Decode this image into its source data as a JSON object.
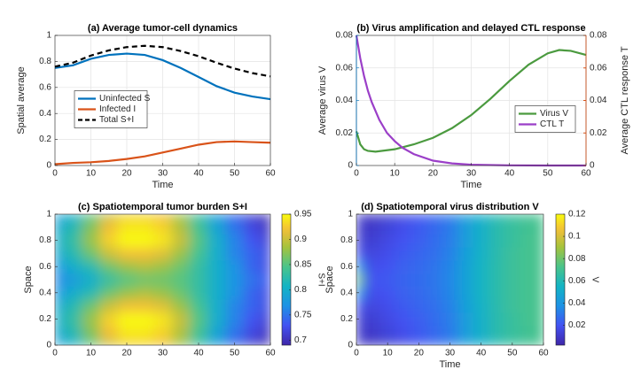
{
  "chart_data": [
    {
      "type": "line",
      "title": "(a) Average tumor-cell dynamics",
      "xlabel": "Time",
      "ylabel": "Spatial average",
      "x": [
        0,
        5,
        10,
        15,
        20,
        25,
        30,
        35,
        40,
        45,
        50,
        55,
        60
      ],
      "series": [
        {
          "name": "Uninfected S",
          "color": "#0072bd",
          "values": [
            0.75,
            0.77,
            0.82,
            0.85,
            0.86,
            0.85,
            0.81,
            0.75,
            0.68,
            0.61,
            0.56,
            0.53,
            0.51
          ]
        },
        {
          "name": "Infected I",
          "color": "#d95319",
          "values": [
            0.01,
            0.02,
            0.025,
            0.035,
            0.05,
            0.07,
            0.1,
            0.13,
            0.16,
            0.18,
            0.185,
            0.18,
            0.175
          ]
        },
        {
          "name": "Total S+I",
          "color": "#000000",
          "style": "dashed",
          "values": [
            0.76,
            0.79,
            0.845,
            0.885,
            0.91,
            0.92,
            0.91,
            0.88,
            0.84,
            0.79,
            0.745,
            0.71,
            0.685
          ]
        }
      ],
      "xlim": [
        0,
        60
      ],
      "xticks": [
        0,
        10,
        20,
        30,
        40,
        50,
        60
      ],
      "ylim": [
        0,
        1
      ],
      "yticks": [
        0,
        0.2,
        0.4,
        0.6,
        0.8,
        1
      ],
      "grid": true,
      "legend": "west"
    },
    {
      "type": "line",
      "title": "(b) Virus amplification and delayed CTL response",
      "xlabel": "Time",
      "ylabel": "Average virus V",
      "y2label": "Average CTL response T",
      "y_color": "#0072bd",
      "y2_color": "#d95319",
      "series": [
        {
          "name": "Virus V",
          "color": "#4b9a3f",
          "x": [
            0,
            1,
            2,
            3,
            5,
            10,
            15,
            20,
            25,
            30,
            35,
            40,
            45,
            50,
            53,
            56,
            60
          ],
          "values": [
            0.021,
            0.013,
            0.01,
            0.009,
            0.0085,
            0.01,
            0.013,
            0.017,
            0.023,
            0.031,
            0.041,
            0.052,
            0.062,
            0.069,
            0.071,
            0.0705,
            0.068
          ]
        },
        {
          "name": "CTL T",
          "color": "#9b3fc8",
          "axis": "y2",
          "x": [
            0,
            1,
            2,
            3,
            4,
            6,
            8,
            10,
            12,
            15,
            20,
            25,
            30,
            40,
            50,
            60
          ],
          "values": [
            0.08,
            0.066,
            0.055,
            0.046,
            0.039,
            0.028,
            0.02,
            0.015,
            0.011,
            0.007,
            0.003,
            0.0013,
            0.0005,
            0.0001,
            0,
            0
          ]
        }
      ],
      "xlim": [
        0,
        60
      ],
      "xticks": [
        0,
        10,
        20,
        30,
        40,
        50,
        60
      ],
      "ylim": [
        0,
        0.08
      ],
      "yticks": [
        0,
        0.02,
        0.04,
        0.06,
        0.08
      ],
      "y2lim": [
        0,
        0.08
      ],
      "y2ticks": [
        0,
        0.02,
        0.04,
        0.06,
        0.08
      ],
      "grid": true,
      "legend": "east"
    },
    {
      "type": "heatmap",
      "title": "(c) Spatiotemporal tumor burden S+I",
      "ylabel": "Space",
      "colorbar_label": "S+I",
      "x": [
        0,
        5,
        10,
        15,
        20,
        25,
        30,
        35,
        40,
        45,
        50,
        55,
        60
      ],
      "y": [
        0,
        0.1,
        0.2,
        0.3,
        0.4,
        0.5,
        0.6,
        0.7,
        0.8,
        0.9,
        1
      ],
      "z": [
        [
          0.78,
          0.8,
          0.85,
          0.9,
          0.93,
          0.93,
          0.92,
          0.88,
          0.83,
          0.78,
          0.74,
          0.71,
          0.69
        ],
        [
          0.79,
          0.82,
          0.87,
          0.92,
          0.94,
          0.94,
          0.93,
          0.89,
          0.84,
          0.79,
          0.75,
          0.72,
          0.7
        ],
        [
          0.8,
          0.83,
          0.88,
          0.93,
          0.95,
          0.95,
          0.94,
          0.9,
          0.85,
          0.8,
          0.76,
          0.73,
          0.71
        ],
        [
          0.79,
          0.82,
          0.86,
          0.9,
          0.92,
          0.92,
          0.91,
          0.88,
          0.84,
          0.8,
          0.76,
          0.74,
          0.72
        ],
        [
          0.77,
          0.8,
          0.82,
          0.86,
          0.88,
          0.89,
          0.88,
          0.86,
          0.83,
          0.8,
          0.77,
          0.74,
          0.72
        ],
        [
          0.76,
          0.78,
          0.8,
          0.83,
          0.85,
          0.86,
          0.86,
          0.85,
          0.83,
          0.8,
          0.77,
          0.75,
          0.73
        ],
        [
          0.77,
          0.8,
          0.82,
          0.86,
          0.88,
          0.89,
          0.88,
          0.86,
          0.83,
          0.8,
          0.77,
          0.74,
          0.72
        ],
        [
          0.79,
          0.82,
          0.86,
          0.9,
          0.92,
          0.92,
          0.91,
          0.88,
          0.84,
          0.8,
          0.76,
          0.74,
          0.72
        ],
        [
          0.8,
          0.83,
          0.88,
          0.93,
          0.95,
          0.95,
          0.94,
          0.9,
          0.85,
          0.8,
          0.76,
          0.73,
          0.71
        ],
        [
          0.79,
          0.82,
          0.87,
          0.92,
          0.94,
          0.94,
          0.93,
          0.89,
          0.84,
          0.79,
          0.75,
          0.72,
          0.7
        ],
        [
          0.78,
          0.8,
          0.85,
          0.9,
          0.93,
          0.93,
          0.92,
          0.88,
          0.83,
          0.78,
          0.74,
          0.71,
          0.69
        ]
      ],
      "xlim": [
        0,
        60
      ],
      "xticks": [
        0,
        10,
        20,
        30,
        40,
        50,
        60
      ],
      "ylim": [
        0,
        1
      ],
      "yticks": [
        0,
        0.2,
        0.4,
        0.6,
        0.8,
        1
      ],
      "clim": [
        0.69,
        0.95
      ],
      "cticks": [
        0.7,
        0.75,
        0.8,
        0.85,
        0.9,
        0.95
      ]
    },
    {
      "type": "heatmap",
      "title": "(d) Spatiotemporal virus distribution V",
      "xlabel": "Time",
      "ylabel": "Space",
      "colorbar_label": "V",
      "x": [
        0,
        5,
        10,
        15,
        20,
        25,
        30,
        35,
        40,
        45,
        50,
        55,
        60
      ],
      "y": [
        0,
        0.1,
        0.2,
        0.3,
        0.4,
        0.5,
        0.6,
        0.7,
        0.8,
        0.9,
        1
      ],
      "z": [
        [
          0.01,
          0.008,
          0.012,
          0.016,
          0.02,
          0.025,
          0.03,
          0.042,
          0.052,
          0.061,
          0.067,
          0.07,
          0.072
        ],
        [
          0.01,
          0.01,
          0.014,
          0.018,
          0.022,
          0.026,
          0.031,
          0.043,
          0.053,
          0.062,
          0.067,
          0.07,
          0.072
        ],
        [
          0.012,
          0.012,
          0.016,
          0.02,
          0.023,
          0.027,
          0.032,
          0.043,
          0.053,
          0.062,
          0.067,
          0.071,
          0.072
        ],
        [
          0.018,
          0.015,
          0.018,
          0.022,
          0.025,
          0.028,
          0.033,
          0.044,
          0.054,
          0.062,
          0.068,
          0.071,
          0.072
        ],
        [
          0.04,
          0.018,
          0.02,
          0.024,
          0.026,
          0.029,
          0.034,
          0.045,
          0.055,
          0.063,
          0.068,
          0.071,
          0.072
        ],
        [
          0.08,
          0.02,
          0.022,
          0.025,
          0.027,
          0.03,
          0.035,
          0.045,
          0.055,
          0.063,
          0.068,
          0.071,
          0.072
        ],
        [
          0.04,
          0.018,
          0.02,
          0.024,
          0.026,
          0.029,
          0.034,
          0.045,
          0.055,
          0.063,
          0.068,
          0.071,
          0.072
        ],
        [
          0.018,
          0.015,
          0.018,
          0.022,
          0.025,
          0.028,
          0.033,
          0.044,
          0.054,
          0.062,
          0.068,
          0.071,
          0.072
        ],
        [
          0.012,
          0.012,
          0.016,
          0.02,
          0.023,
          0.027,
          0.032,
          0.043,
          0.053,
          0.062,
          0.067,
          0.071,
          0.072
        ],
        [
          0.01,
          0.01,
          0.014,
          0.018,
          0.022,
          0.026,
          0.031,
          0.043,
          0.053,
          0.062,
          0.067,
          0.07,
          0.072
        ],
        [
          0.01,
          0.008,
          0.012,
          0.016,
          0.02,
          0.025,
          0.03,
          0.042,
          0.052,
          0.061,
          0.067,
          0.07,
          0.072
        ]
      ],
      "xlim": [
        0,
        60
      ],
      "xticks": [
        0,
        10,
        20,
        30,
        40,
        50,
        60
      ],
      "ylim": [
        0,
        1
      ],
      "yticks": [
        0,
        0.2,
        0.4,
        0.6,
        0.8,
        1
      ],
      "clim": [
        0.002,
        0.12
      ],
      "cticks": [
        0.02,
        0.04,
        0.06,
        0.08,
        0.1,
        0.12
      ]
    }
  ]
}
